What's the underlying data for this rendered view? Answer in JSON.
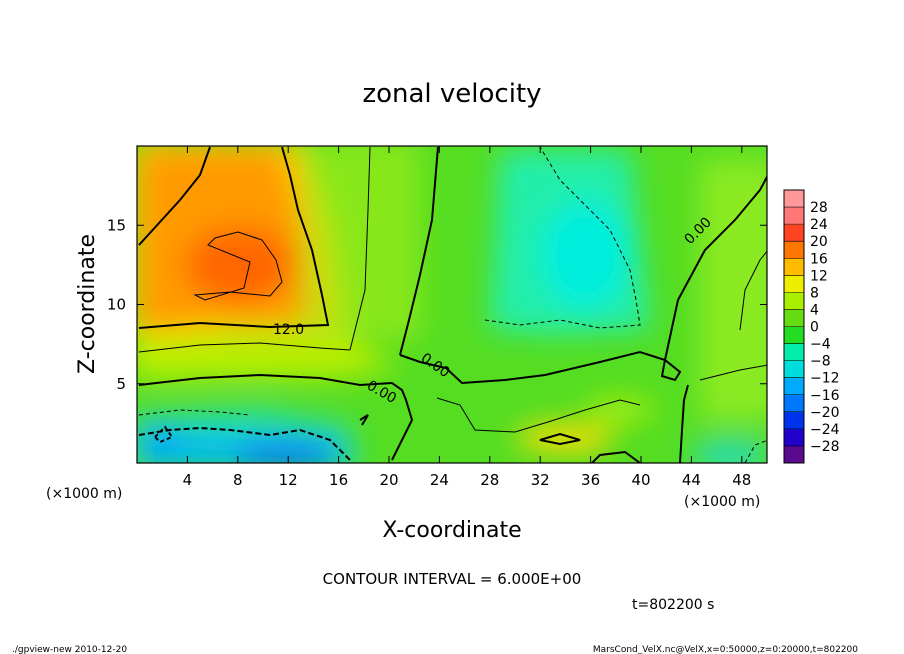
{
  "chart_data": {
    "type": "heatmap",
    "title": "zonal velocity",
    "xlabel": "X-coordinate",
    "ylabel": "Z-coordinate",
    "x_unit": "(×1000 m)",
    "x_unit_right": "(×1000 m)",
    "xlim": [
      0,
      50
    ],
    "ylim": [
      0,
      20
    ],
    "xticks": [
      4,
      8,
      12,
      16,
      20,
      24,
      28,
      32,
      36,
      40,
      44,
      48
    ],
    "yticks": [
      5,
      10,
      15
    ],
    "colorbar": {
      "levels": [
        -28,
        -24,
        -20,
        -16,
        -12,
        -8,
        -4,
        0,
        4,
        8,
        12,
        16,
        20,
        24,
        28
      ],
      "labels": [
        "28",
        "24",
        "20",
        "16",
        "12",
        "8",
        "4",
        "0",
        "−4",
        "−8",
        "−12",
        "−16",
        "−20",
        "−24",
        "−28"
      ]
    },
    "contour_labels": [
      "12.0",
      "0.00",
      "0.00",
      "0.00"
    ],
    "contour_interval_text": "CONTOUR INTERVAL = 6.000E+00",
    "time_text": "t=802200 s"
  },
  "footer": {
    "left": "./gpview-new 2010-12-20",
    "right": "MarsCond_VelX.nc@VelX,x=0:50000,z=0:20000,t=802200"
  }
}
